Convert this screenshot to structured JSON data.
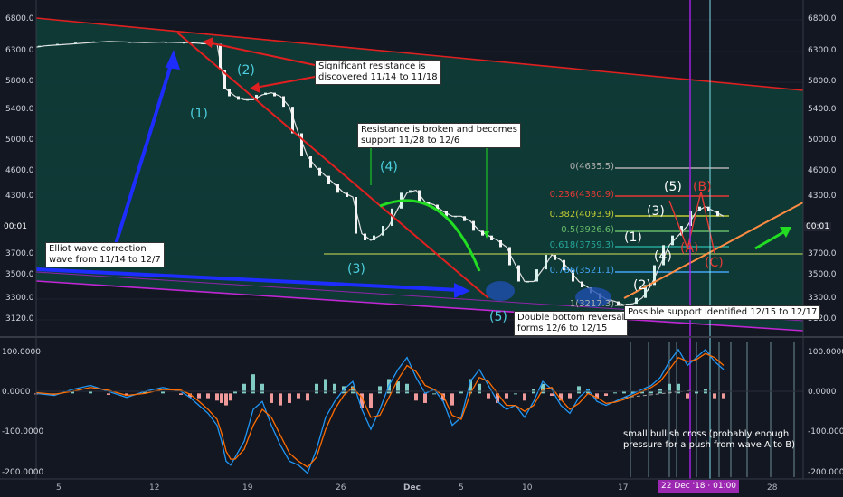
{
  "chart_data": [
    {
      "type": "line",
      "description_series": "Bitcoin price (candlesticks simplified to a close-price line)",
      "x_labels": [
        "5",
        "12",
        "19",
        "26",
        "Dec",
        "5",
        "10",
        "17",
        "22 Dec '18 · 01:00",
        "28"
      ],
      "y_ticks": [
        6800.0,
        6300.0,
        5800.0,
        5400.0,
        5000.0,
        4600.0,
        4300.0,
        3700.0,
        3500.0,
        3300.0,
        3120.0
      ],
      "y_ticks_left": [
        "6800.0",
        "6300.0",
        "5800.0",
        "5400.0",
        "5000.0",
        "4600.0",
        "4300.0",
        "3700.0",
        "3500.0",
        "3300.0",
        "3120.0"
      ],
      "y_ticks_right": [
        "6800.0",
        "6300.0",
        "5800.0",
        "5400.0",
        "5000.0",
        "4600.0",
        "4300.0",
        "3700.0",
        "3500.0",
        "3300.0",
        "3120.0"
      ],
      "current_price_label": "00:01",
      "ylim": [
        3000,
        7000
      ],
      "series": [
        {
          "x": [
            0,
            10,
            20,
            40,
            60,
            80,
            100,
            120,
            140,
            160,
            170,
            180,
            190,
            200,
            205,
            210,
            220,
            230,
            240,
            250,
            260,
            270,
            280,
            290,
            300,
            310,
            320,
            330,
            340,
            350,
            360,
            370,
            380,
            390,
            400,
            410,
            420,
            430,
            440,
            450,
            460,
            470,
            480,
            490,
            500,
            510,
            520,
            530,
            540,
            550,
            560,
            570,
            580,
            590,
            600,
            610,
            620,
            630,
            640,
            650,
            660,
            670,
            680,
            690,
            700,
            710,
            720,
            730,
            740,
            750,
            760
          ],
          "values": [
            6370,
            6390,
            6400,
            6420,
            6440,
            6460,
            6450,
            6440,
            6450,
            6440,
            6440,
            6430,
            6420,
            6420,
            6000,
            5700,
            5600,
            5550,
            5550,
            5620,
            5650,
            5600,
            5450,
            5100,
            4800,
            4650,
            4550,
            4450,
            4350,
            4300,
            3920,
            3850,
            3900,
            4000,
            4180,
            4350,
            4380,
            4250,
            4220,
            4150,
            4100,
            4100,
            4050,
            3950,
            3900,
            3850,
            3780,
            3600,
            3450,
            3450,
            3560,
            3700,
            3650,
            3550,
            3450,
            3400,
            3350,
            3300,
            3280,
            3250,
            3260,
            3310,
            3420,
            3600,
            3800,
            3900,
            4000,
            4150,
            4200,
            4150,
            4100
          ]
        }
      ],
      "fibonacci": [
        {
          "label": "0(4635.5)",
          "color": "#b0b0b0"
        },
        {
          "label": "0.236(4380.9)",
          "color": "#e53935"
        },
        {
          "label": "0.382(4093.9)",
          "color": "#c0ca33"
        },
        {
          "label": "0.5(3926.6)",
          "color": "#66bb6a"
        },
        {
          "label": "0.618(3759.3)",
          "color": "#26a69a"
        },
        {
          "label": "0.786(3521.1)",
          "color": "#42a5f5"
        },
        {
          "label": "1(3217.3)",
          "color": "#b0b0b0"
        }
      ],
      "wave_labels": [
        {
          "label": "(1)",
          "color": "#4dd0e1"
        },
        {
          "label": "(2)",
          "color": "#4dd0e1"
        },
        {
          "label": "(3)",
          "color": "#4dd0e1"
        },
        {
          "label": "(4)",
          "color": "#4dd0e1"
        },
        {
          "label": "(5)",
          "color": "#4dd0e1"
        },
        {
          "label": "(1)",
          "color": "#ffffff"
        },
        {
          "label": "(2)",
          "color": "#ffffff"
        },
        {
          "label": "(3)",
          "color": "#ffffff"
        },
        {
          "label": "(4)",
          "color": "#ffffff"
        },
        {
          "label": "(5)",
          "color": "#ffffff"
        },
        {
          "label": "(A)",
          "color": "#e53935"
        },
        {
          "label": "(B)",
          "color": "#e53935"
        },
        {
          "label": "(C)",
          "color": "#e53935"
        }
      ],
      "annotations": [
        {
          "text": [
            "Significant resistance is",
            "discovered 11/14 to 11/18"
          ],
          "style": "box"
        },
        {
          "text": [
            "Resistance is broken and becomes",
            "support 11/28 to 12/6"
          ],
          "style": "box"
        },
        {
          "text": [
            "Elliot wave correction",
            "wave from 11/14 to 12/7"
          ],
          "style": "box"
        },
        {
          "text": [
            "Double bottom reversal",
            "forms 12/6 to 12/15"
          ],
          "style": "box"
        },
        {
          "text": [
            "Possible support identified 12/15 to 12/17"
          ],
          "style": "box"
        },
        {
          "text": [
            "small bullish cross (probably enough",
            "pressure for a push from wave A to B)"
          ],
          "style": "plain"
        }
      ],
      "colors": {
        "background": "#131722",
        "channel_fill": "#0f3b37",
        "uptrend": "#26a69a",
        "downtrend": "#ef5350",
        "blue_arrow": "#1e2dff",
        "green_arrow": "#22dd22",
        "trend_red": "#e02020",
        "orange": "#ff8c42"
      }
    },
    {
      "type": "line",
      "description_series": "MACD indicator",
      "y_ticks_left": [
        "100.0000",
        "0.0000",
        "-100.0000",
        "-200.0000"
      ],
      "y_ticks_right": [
        "100.0000",
        "0.0000",
        "-100.0000",
        "-200.0000"
      ],
      "ylim": [
        -210,
        130
      ],
      "series": [
        {
          "x": [
            0,
            20,
            40,
            60,
            80,
            100,
            120,
            140,
            160,
            170,
            180,
            190,
            200,
            205,
            210,
            215,
            220,
            230,
            240,
            250,
            260,
            270,
            280,
            290,
            300,
            310,
            320,
            330,
            340,
            350,
            360,
            370,
            380,
            390,
            400,
            410,
            420,
            430,
            440,
            450,
            460,
            470,
            480,
            490,
            500,
            510,
            520,
            530,
            540,
            550,
            560,
            570,
            580,
            590,
            600,
            610,
            620,
            630,
            640,
            650,
            660,
            670,
            680,
            690,
            700,
            710,
            720,
            730,
            740,
            750,
            760
          ],
          "values": [
            0,
            -5,
            10,
            20,
            5,
            -10,
            5,
            15,
            5,
            -10,
            -30,
            -50,
            -80,
            -120,
            -170,
            -180,
            -160,
            -120,
            -40,
            -20,
            -80,
            -130,
            -170,
            -180,
            -200,
            -140,
            -60,
            -20,
            10,
            30,
            -40,
            -90,
            -40,
            20,
            60,
            90,
            40,
            0,
            10,
            -20,
            -80,
            -60,
            30,
            60,
            20,
            -20,
            -40,
            -30,
            -60,
            -20,
            30,
            10,
            -30,
            -50,
            -10,
            10,
            -20,
            -30,
            -20,
            -10,
            0,
            10,
            20,
            40,
            80,
            110,
            70,
            90,
            110,
            80,
            60
          ]
        },
        {
          "x": [
            0,
            20,
            40,
            60,
            80,
            100,
            120,
            140,
            160,
            170,
            180,
            190,
            200,
            205,
            210,
            215,
            220,
            230,
            240,
            250,
            260,
            270,
            280,
            290,
            300,
            310,
            320,
            330,
            340,
            350,
            360,
            370,
            380,
            390,
            400,
            410,
            420,
            430,
            440,
            450,
            460,
            470,
            480,
            490,
            500,
            510,
            520,
            530,
            540,
            550,
            560,
            570,
            580,
            590,
            600,
            610,
            620,
            630,
            640,
            650,
            660,
            670,
            680,
            690,
            700,
            710,
            720,
            730,
            740,
            750,
            760
          ],
          "values": [
            2,
            -2,
            5,
            15,
            8,
            -5,
            0,
            10,
            8,
            -2,
            -20,
            -40,
            -65,
            -100,
            -145,
            -165,
            -165,
            -140,
            -80,
            -40,
            -60,
            -105,
            -150,
            -170,
            -185,
            -160,
            -90,
            -40,
            -5,
            15,
            -10,
            -60,
            -55,
            -10,
            35,
            70,
            55,
            20,
            10,
            -5,
            -55,
            -65,
            0,
            40,
            30,
            0,
            -30,
            -30,
            -45,
            -30,
            10,
            15,
            -15,
            -40,
            -25,
            0,
            -10,
            -25,
            -22,
            -15,
            -5,
            5,
            15,
            30,
            60,
            90,
            80,
            85,
            100,
            90,
            70
          ]
        }
      ]
    }
  ]
}
